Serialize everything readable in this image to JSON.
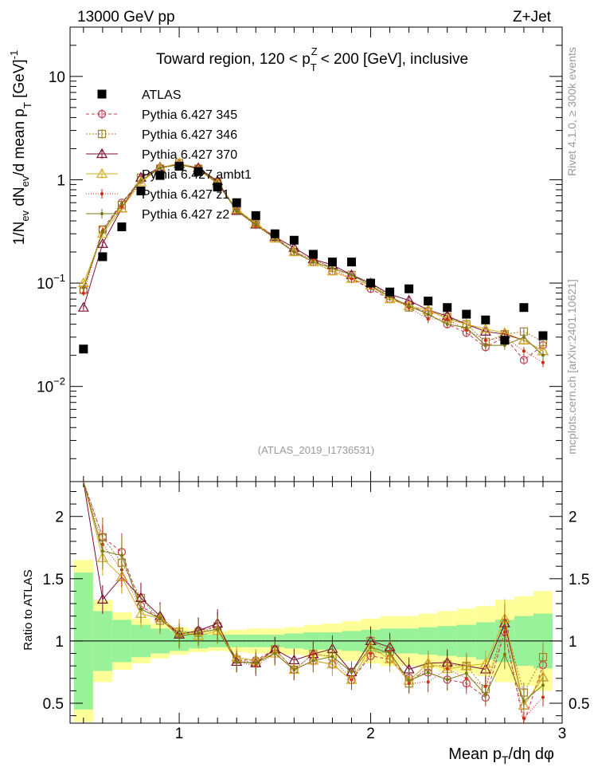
{
  "header": {
    "left": "13000 GeV pp",
    "right": "Z+Jet"
  },
  "side": {
    "top": "Rivet 4.1.0, ≥ 300k events",
    "bottom": "mcplots.cern.ch [arXiv:2401.10621]"
  },
  "watermark": "(ATLAS_2019_I1736531)",
  "chart_data": {
    "type": "line",
    "title_parts": [
      "Toward region, 120 < p",
      "T",
      "Z",
      "< 200 [GeV], inclusive"
    ],
    "ylabel_parts": [
      "1/N",
      "ev",
      " dN",
      "ev",
      "/d mean p",
      "T",
      " [GeV]",
      "-1"
    ],
    "xlabel_parts": [
      "Mean p",
      "T",
      "/dη dφ"
    ],
    "ratio_ylabel": "Ratio to ATLAS",
    "xlim": [
      0.43,
      3.0
    ],
    "ylim_main": [
      0.0012,
      30
    ],
    "ylim_ratio": [
      0.34,
      2.28
    ],
    "x_ticks": [
      "1",
      "2",
      "3"
    ],
    "y_ticks_main": [
      "10",
      "1",
      "10^-1",
      "10^-2"
    ],
    "y_ticks_ratio": [
      "2",
      "1.5",
      "1",
      "0.5"
    ],
    "x": [
      0.5,
      0.6,
      0.7,
      0.8,
      0.9,
      1.0,
      1.1,
      1.2,
      1.3,
      1.4,
      1.5,
      1.6,
      1.7,
      1.8,
      1.9,
      2.0,
      2.1,
      2.2,
      2.3,
      2.4,
      2.5,
      2.6,
      2.7,
      2.8,
      2.9
    ],
    "band_edges": [
      0.45,
      0.55,
      0.65,
      0.75,
      0.85,
      0.95,
      1.05,
      1.15,
      1.25,
      1.35,
      1.45,
      1.55,
      1.65,
      1.75,
      1.85,
      1.95,
      2.05,
      2.15,
      2.25,
      2.35,
      2.45,
      2.55,
      2.65,
      2.75,
      2.85,
      2.95
    ],
    "band_inner": [
      0.55,
      0.24,
      0.17,
      0.13,
      0.1,
      0.08,
      0.06,
      0.05,
      0.05,
      0.05,
      0.05,
      0.06,
      0.07,
      0.07,
      0.08,
      0.09,
      0.1,
      0.1,
      0.11,
      0.12,
      0.13,
      0.15,
      0.17,
      0.2,
      0.22
    ],
    "band_outer": [
      0.65,
      0.33,
      0.23,
      0.18,
      0.14,
      0.11,
      0.09,
      0.08,
      0.09,
      0.1,
      0.1,
      0.11,
      0.13,
      0.14,
      0.16,
      0.18,
      0.2,
      0.2,
      0.22,
      0.24,
      0.26,
      0.28,
      0.33,
      0.36,
      0.4
    ],
    "data": {
      "name": "ATLAS",
      "values": [
        0.023,
        0.18,
        0.35,
        0.78,
        1.1,
        1.35,
        1.2,
        0.85,
        0.6,
        0.45,
        0.3,
        0.26,
        0.19,
        0.16,
        0.16,
        0.1,
        0.082,
        0.088,
        0.067,
        0.058,
        0.05,
        0.044,
        0.028,
        0.058,
        0.031
      ]
    },
    "series": [
      {
        "name": "Pythia 6.427 345",
        "color": "#c1374e",
        "marker": "circle",
        "dash": "4,3",
        "values": [
          0.085,
          0.33,
          0.6,
          1.0,
          1.3,
          1.42,
          1.3,
          0.95,
          0.51,
          0.38,
          0.28,
          0.2,
          0.16,
          0.13,
          0.11,
          0.088,
          0.07,
          0.062,
          0.05,
          0.04,
          0.033,
          0.024,
          0.03,
          0.018,
          0.025
        ]
      },
      {
        "name": "Pythia 6.427 346",
        "color": "#a0822e",
        "marker": "square",
        "dash": "2,2",
        "values": [
          0.086,
          0.33,
          0.57,
          1.05,
          1.28,
          1.45,
          1.28,
          0.95,
          0.51,
          0.37,
          0.28,
          0.2,
          0.17,
          0.14,
          0.12,
          0.1,
          0.075,
          0.058,
          0.053,
          0.047,
          0.04,
          0.027,
          0.032,
          0.034,
          0.027
        ]
      },
      {
        "name": "Pythia 6.427 370",
        "color": "#7a0f2e",
        "marker": "triangle",
        "dash": "",
        "values": [
          0.058,
          0.24,
          0.53,
          1.05,
          1.32,
          1.42,
          1.3,
          0.97,
          0.5,
          0.37,
          0.28,
          0.22,
          0.17,
          0.15,
          0.12,
          0.1,
          0.078,
          0.068,
          0.055,
          0.048,
          0.04,
          0.034,
          0.032,
          0.028,
          0.022
        ]
      },
      {
        "name": "Pythia 6.427 ambt1",
        "color": "#d6ad1e",
        "marker": "triangle-open",
        "dash": "",
        "values": [
          0.1,
          0.3,
          0.53,
          0.95,
          1.3,
          1.45,
          1.25,
          0.92,
          0.52,
          0.38,
          0.27,
          0.2,
          0.16,
          0.13,
          0.11,
          0.095,
          0.07,
          0.06,
          0.055,
          0.045,
          0.04,
          0.036,
          0.033,
          0.028,
          0.022
        ]
      },
      {
        "name": "Pythia 6.427 z1",
        "color": "#cc2a12",
        "marker": "dot",
        "dash": "1,2",
        "values": [
          0.08,
          0.32,
          0.55,
          0.98,
          1.3,
          1.4,
          1.28,
          0.93,
          0.5,
          0.36,
          0.27,
          0.2,
          0.17,
          0.14,
          0.11,
          0.09,
          0.075,
          0.058,
          0.045,
          0.045,
          0.035,
          0.028,
          0.03,
          0.022,
          0.017
        ]
      },
      {
        "name": "Pythia 6.427 z2",
        "color": "#7a7a10",
        "marker": "dot",
        "dash": "",
        "values": [
          0.09,
          0.31,
          0.59,
          0.98,
          1.3,
          1.4,
          1.28,
          0.93,
          0.5,
          0.37,
          0.27,
          0.2,
          0.16,
          0.14,
          0.12,
          0.095,
          0.074,
          0.06,
          0.05,
          0.04,
          0.037,
          0.025,
          0.025,
          0.03,
          0.02
        ]
      }
    ]
  }
}
